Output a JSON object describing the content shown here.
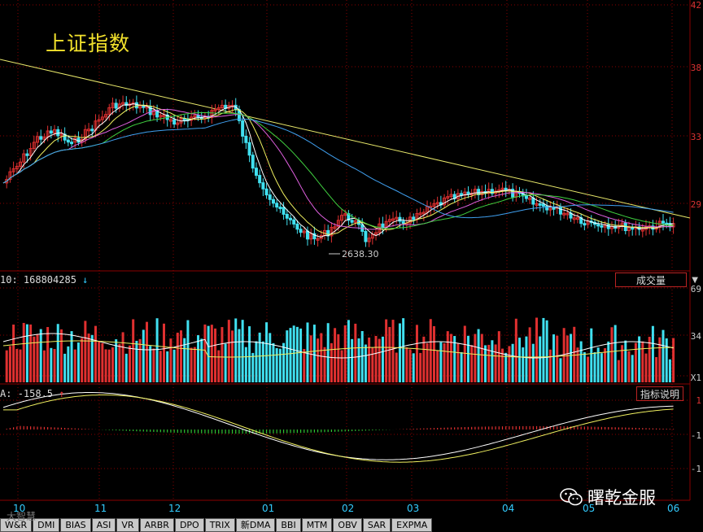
{
  "title": "上证指数",
  "price_axis": {
    "ticks": [
      "42",
      "38",
      "33",
      "29"
    ]
  },
  "low_marker": "2638.30",
  "volume": {
    "label": "10: 168804285",
    "arrow": "↓",
    "axis_ticks": [
      "69",
      "34",
      "X1"
    ],
    "selector": "成交量"
  },
  "macd": {
    "label_prefix": "A:",
    "value": "-158.5",
    "arrow": "↑",
    "button": "指标说明",
    "axis_ticks": [
      "1",
      "-1",
      "-1"
    ]
  },
  "months": [
    "10",
    "11",
    "12",
    "01",
    "02",
    "03",
    "04",
    "05",
    "06"
  ],
  "tabs": [
    "W&R",
    "DMI",
    "BIAS",
    "ASI",
    "VR",
    "ARBR",
    "DPO",
    "TRIX",
    "新DMA",
    "BBI",
    "MTM",
    "OBV",
    "SAR",
    "EXPMA"
  ],
  "watermark": "曙乾金服",
  "watermark2": "大智慧",
  "colors": {
    "up": "#e03030",
    "down": "#40e0f0",
    "trendline": "#e8e86a",
    "ma5": "#ffffff",
    "ma10": "#f0f060",
    "ma20": "#e060e0",
    "ma30": "#40d040",
    "ma60": "#40a0f0",
    "grid": "#8a0000"
  }
}
